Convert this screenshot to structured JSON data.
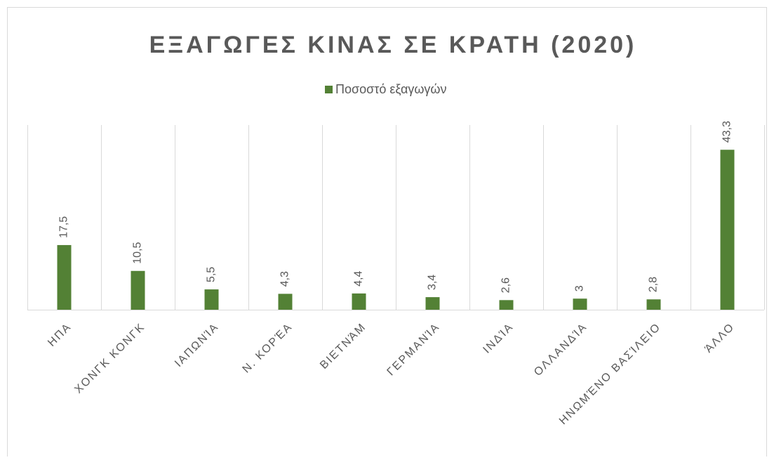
{
  "chart_data": {
    "type": "bar",
    "title": "ΕΞΑΓΩΓΕΣ ΚΙΝΑΣ ΣΕ ΚΡΑΤΗ (2020)",
    "categories": [
      "ΗΠΑ",
      "ΧΟΝΓΚ ΚΟΝΓΚ",
      "ΙΑΠΩΝΊΑ",
      "Ν. ΚΟΡΈΑ",
      "ΒΙΕΤΝΆΜ",
      "ΓΕΡΜΑΝΊΑ",
      "ΙΝΔΊΑ",
      "ΟΛΛΑΝΔΊΑ",
      "ΗΝΩΜΈΝΟ ΒΑΣΊΛΕΙΟ",
      "ΆΛΛΟ"
    ],
    "series": [
      {
        "name": "Ποσοστό εξαγωγών",
        "color": "#538135",
        "values": [
          17.5,
          10.5,
          5.5,
          4.3,
          4.4,
          3.4,
          2.6,
          3,
          2.8,
          43.3
        ],
        "value_labels": [
          "17,5",
          "10,5",
          "5,5",
          "4,3",
          "4,4",
          "3,4",
          "2,6",
          "3",
          "2,8",
          "43,3"
        ]
      }
    ],
    "ylim": [
      0,
      50
    ],
    "legend": "top"
  }
}
